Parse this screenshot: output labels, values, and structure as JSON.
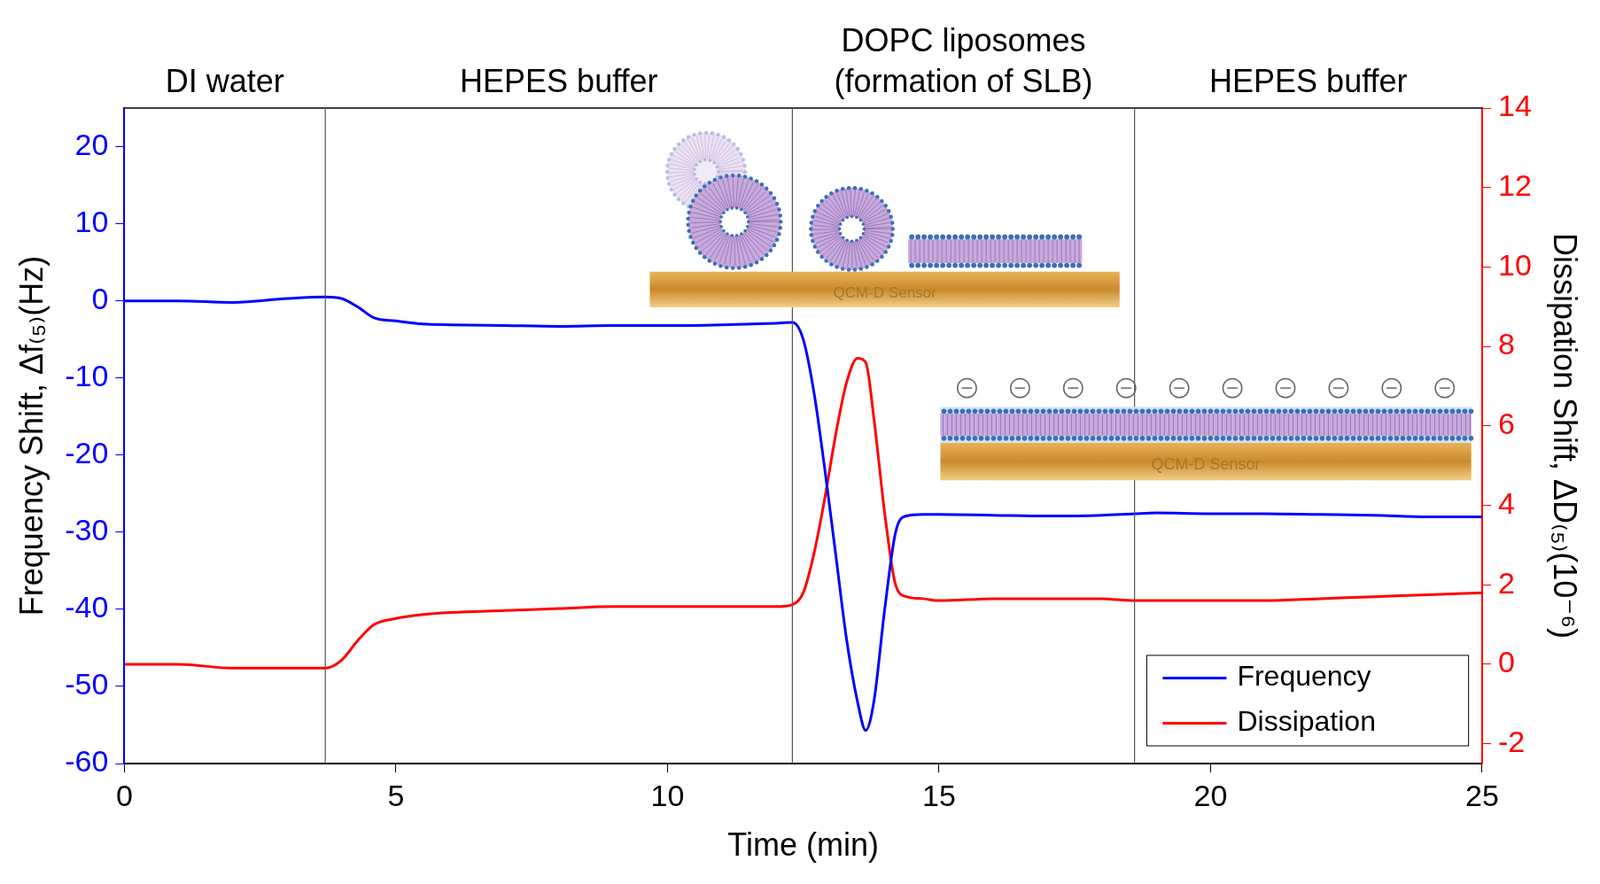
{
  "chart_data": {
    "type": "line",
    "x_label": "Time (min)",
    "y_label": "Frequency Shift, Δf₍₅₎(Hz)",
    "y2_label": "Dissipation Shift, ΔD₍₅₎(10⁻⁶)",
    "xlim": [
      0,
      25
    ],
    "xticks": [
      0,
      5,
      10,
      15,
      20,
      25
    ],
    "ylim": [
      -60,
      25
    ],
    "yticks": [
      -60,
      -50,
      -40,
      -30,
      -20,
      -10,
      0,
      10,
      20
    ],
    "y2lim": [
      -2.5,
      14
    ],
    "y2ticks": [
      -2,
      0,
      2,
      4,
      6,
      8,
      10,
      12,
      14
    ],
    "grid": false,
    "legend": "lower right",
    "x": [
      0,
      1,
      2,
      3,
      3.7,
      4.0,
      4.3,
      4.6,
      5.0,
      5.5,
      6,
      7,
      8,
      9,
      10,
      11,
      12,
      12.3,
      12.5,
      12.7,
      12.9,
      13.1,
      13.3,
      13.5,
      13.65,
      13.8,
      14.0,
      14.2,
      14.4,
      14.7,
      15,
      16,
      17,
      18,
      18.6,
      19,
      20,
      21,
      22,
      23,
      24,
      25
    ],
    "series": [
      {
        "name": "Frequency",
        "color": "#0000ff",
        "axis": "y",
        "line_style": "solid",
        "marker": "none",
        "values": [
          0,
          0,
          -0.2,
          0.3,
          0.5,
          0.3,
          -0.8,
          -2.2,
          -2.6,
          -3,
          -3.1,
          -3.2,
          -3.3,
          -3.2,
          -3.2,
          -3.1,
          -2.9,
          -2.8,
          -5,
          -12,
          -22,
          -33,
          -44,
          -52,
          -55.7,
          -52,
          -40,
          -30,
          -27.9,
          -27.7,
          -27.7,
          -27.8,
          -27.9,
          -27.8,
          -27.6,
          -27.5,
          -27.6,
          -27.6,
          -27.7,
          -27.8,
          -28,
          -28
        ]
      },
      {
        "name": "Dissipation",
        "color": "#ff0000",
        "axis": "y2",
        "line_style": "solid",
        "marker": "none",
        "values": [
          0,
          0,
          -0.1,
          -0.1,
          -0.1,
          0.1,
          0.6,
          1.0,
          1.15,
          1.25,
          1.3,
          1.35,
          1.4,
          1.45,
          1.45,
          1.45,
          1.45,
          1.5,
          1.8,
          2.8,
          4.2,
          5.8,
          7.1,
          7.7,
          7.6,
          6.2,
          3.8,
          2.0,
          1.7,
          1.65,
          1.6,
          1.65,
          1.65,
          1.65,
          1.6,
          1.6,
          1.6,
          1.6,
          1.65,
          1.7,
          1.75,
          1.8
        ]
      }
    ],
    "phases": [
      {
        "label": "DI water",
        "start": 0,
        "end": 3.7
      },
      {
        "label": "HEPES buffer",
        "start": 3.7,
        "end": 12.3
      },
      {
        "label": "DOPC liposomes\n(formation of SLB)",
        "start": 12.3,
        "end": 18.6
      },
      {
        "label": "HEPES buffer",
        "start": 18.6,
        "end": 25
      }
    ],
    "insets": [
      {
        "label": "QCM-D Sensor"
      },
      {
        "label": "QCM-D Sensor"
      }
    ]
  }
}
